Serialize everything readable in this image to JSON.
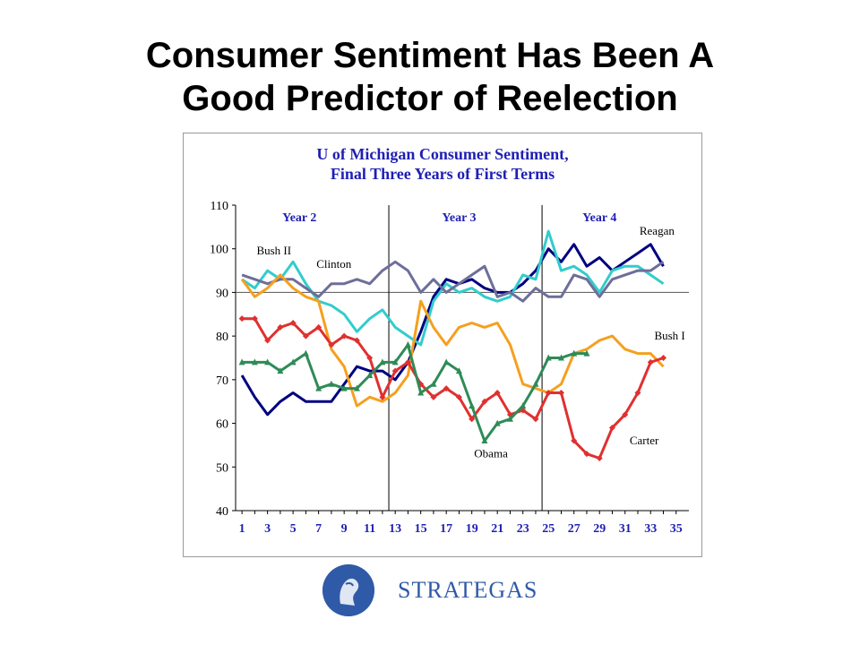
{
  "slide": {
    "title_line1": "Consumer Sentiment Has Been A",
    "title_line2": "Good Predictor of Reelection"
  },
  "logo": {
    "text": "STRATEGAS",
    "color": "#2f5aa8"
  },
  "chart_data": {
    "type": "line",
    "title_line1": "U of Michigan Consumer Sentiment,",
    "title_line2": "Final Three Years of First Terms",
    "ylim": [
      40,
      110
    ],
    "yticks": [
      40,
      50,
      60,
      70,
      80,
      90,
      100,
      110
    ],
    "xlim": [
      0.5,
      36
    ],
    "xticks": [
      1,
      3,
      5,
      7,
      9,
      11,
      13,
      15,
      17,
      19,
      21,
      23,
      25,
      27,
      29,
      31,
      33,
      35
    ],
    "reference_line": 90,
    "dividers": [
      12.5,
      24.5
    ],
    "year_labels": [
      {
        "text": "Year 2",
        "x": 5.5
      },
      {
        "text": "Year 3",
        "x": 18
      },
      {
        "text": "Year 4",
        "x": 29
      }
    ],
    "grid": false,
    "series": [
      {
        "name": "Reagan",
        "color": "#000080",
        "marker": "none",
        "label_x": 33.5,
        "label_y": 104,
        "values": [
          71,
          66,
          62,
          65,
          67,
          65,
          65,
          65,
          69,
          73,
          72,
          72,
          70,
          74,
          81,
          89,
          93,
          92,
          93,
          91,
          90,
          90,
          92,
          95,
          100,
          97,
          101,
          96,
          98,
          95,
          97,
          99,
          101,
          96
        ]
      },
      {
        "name": "Bush II",
        "color": "#33cccc",
        "marker": "none",
        "label_x": 3.5,
        "label_y": 99.5,
        "values": [
          93,
          91,
          95,
          93,
          97,
          92,
          88,
          87,
          85,
          81,
          84,
          86,
          82,
          80,
          78,
          88,
          92,
          90,
          91,
          89,
          88,
          89,
          94,
          93,
          104,
          95,
          96,
          94,
          90,
          95,
          96,
          96,
          94,
          92
        ]
      },
      {
        "name": "Clinton",
        "color": "#6e6e9a",
        "marker": "none",
        "label_x": 8.2,
        "label_y": 96.5,
        "values": [
          94,
          93,
          92,
          93,
          93,
          91,
          89,
          92,
          92,
          93,
          92,
          95,
          97,
          95,
          90,
          93,
          90,
          92,
          94,
          96,
          89,
          90,
          88,
          91,
          89,
          89,
          94,
          93,
          89,
          93,
          94,
          95,
          95,
          97
        ]
      },
      {
        "name": "Bush I",
        "color": "#f5a01e",
        "marker": "none",
        "label_x": 34.5,
        "label_y": 80,
        "values": [
          93,
          89,
          91,
          94,
          91,
          89,
          88,
          77,
          73,
          64,
          66,
          65,
          67,
          71,
          88,
          82,
          78,
          82,
          83,
          82,
          83,
          78,
          69,
          68,
          67,
          69,
          76,
          77,
          79,
          80,
          77,
          76,
          76,
          73
        ]
      },
      {
        "name": "Carter",
        "color": "#e03030",
        "marker": "diamond",
        "label_x": 32.5,
        "label_y": 56,
        "values": [
          84,
          84,
          79,
          82,
          83,
          80,
          82,
          78,
          80,
          79,
          75,
          66,
          72,
          74,
          69,
          66,
          68,
          66,
          61,
          65,
          67,
          62,
          63,
          61,
          67,
          67,
          56,
          53,
          52,
          59,
          62,
          67,
          74,
          75
        ]
      },
      {
        "name": "Obama",
        "color": "#2e8b57",
        "marker": "triangle",
        "label_x": 20.5,
        "label_y": 53,
        "values": [
          74,
          74,
          74,
          72,
          74,
          76,
          68,
          69,
          68,
          68,
          71,
          74,
          74,
          78,
          67,
          69,
          74,
          72,
          64,
          56,
          60,
          61,
          64,
          69,
          75,
          75,
          76,
          76
        ]
      }
    ]
  }
}
